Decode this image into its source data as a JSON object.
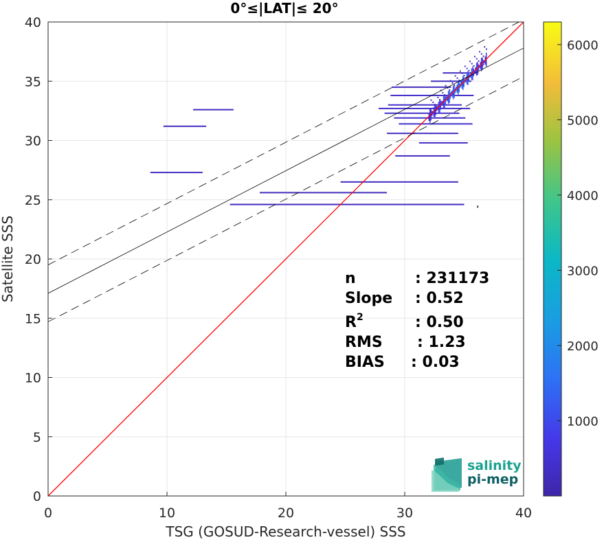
{
  "chart_data": {
    "type": "scatter",
    "title": "0°≤|LAT|≤ 20°",
    "xlabel": "TSG (GOSUD-Research-vessel) SSS",
    "ylabel": "Satellite SSS",
    "xlim": [
      0,
      40
    ],
    "ylim": [
      0,
      40
    ],
    "xticks": [
      0,
      10,
      20,
      30,
      40
    ],
    "yticks": [
      0,
      5,
      10,
      15,
      20,
      25,
      30,
      35,
      40
    ],
    "grid": true,
    "colorbar": {
      "range": [
        0,
        6300
      ],
      "ticks": [
        1000,
        2000,
        3000,
        4000,
        5000,
        6000
      ],
      "colormap": "parula"
    },
    "lines": [
      {
        "name": "1:1",
        "x": [
          0,
          40
        ],
        "y": [
          0,
          40
        ],
        "color": "#ff0000",
        "style": "solid"
      },
      {
        "name": "fit",
        "x": [
          0,
          40
        ],
        "y": [
          17.1,
          37.8
        ],
        "color": "#000000",
        "style": "solid"
      },
      {
        "name": "fit+2rms",
        "x": [
          0,
          40
        ],
        "y": [
          19.5,
          40.2
        ],
        "color": "#000000",
        "style": "dashed"
      },
      {
        "name": "fit-2rms",
        "x": [
          0,
          40
        ],
        "y": [
          14.7,
          35.4
        ],
        "color": "#000000",
        "style": "dashed"
      }
    ],
    "horizontal_bands": [
      {
        "x1": 12.2,
        "x2": 15.6,
        "y": 32.6,
        "count": 300
      },
      {
        "x1": 9.7,
        "x2": 13.3,
        "y": 31.2,
        "count": 300
      },
      {
        "x1": 8.6,
        "x2": 13.0,
        "y": 27.3,
        "count": 300
      },
      {
        "x1": 17.8,
        "x2": 28.5,
        "y": 25.6,
        "count": 200
      },
      {
        "x1": 15.3,
        "x2": 35.0,
        "y": 24.6,
        "count": 300
      },
      {
        "x1": 24.6,
        "x2": 34.5,
        "y": 26.5,
        "count": 300
      },
      {
        "x1": 29.2,
        "x2": 33.8,
        "y": 28.7,
        "count": 300
      },
      {
        "x1": 31.2,
        "x2": 35.3,
        "y": 29.8,
        "count": 300
      },
      {
        "x1": 28.5,
        "x2": 34.5,
        "y": 30.6,
        "count": 300
      },
      {
        "x1": 27.8,
        "x2": 35.5,
        "y": 32.7,
        "count": 400
      },
      {
        "x1": 28.8,
        "x2": 35.8,
        "y": 33.8,
        "count": 400
      },
      {
        "x1": 28.6,
        "x2": 34.8,
        "y": 33.0,
        "count": 400
      },
      {
        "x1": 28.3,
        "x2": 34.6,
        "y": 32.3,
        "count": 400
      },
      {
        "x1": 29.5,
        "x2": 35.7,
        "y": 31.4,
        "count": 400
      },
      {
        "x1": 29.1,
        "x2": 35.1,
        "y": 31.9,
        "count": 400
      },
      {
        "x1": 28.9,
        "x2": 33.9,
        "y": 34.5,
        "count": 300
      },
      {
        "x1": 32.2,
        "x2": 35.6,
        "y": 35.0,
        "count": 300
      },
      {
        "x1": 33.2,
        "x2": 36.2,
        "y": 35.7,
        "count": 300
      }
    ],
    "dense_cluster": {
      "x1": 32.0,
      "x2": 36.9,
      "ymin": 31.5,
      "ymax": 37.0,
      "peak_count": 1400
    },
    "stats": [
      {
        "label": "n",
        "value": ": 231173"
      },
      {
        "label": "Slope",
        "value": ": 0.52"
      },
      {
        "label": "R",
        "sup": "2",
        "value": ": 0.50"
      },
      {
        "label": "RMS",
        "value": ": 1.23"
      },
      {
        "label": "BIAS",
        "value": ": 0.03"
      }
    ]
  },
  "logo": {
    "line1": "salinity",
    "line2": "pi-mep"
  }
}
